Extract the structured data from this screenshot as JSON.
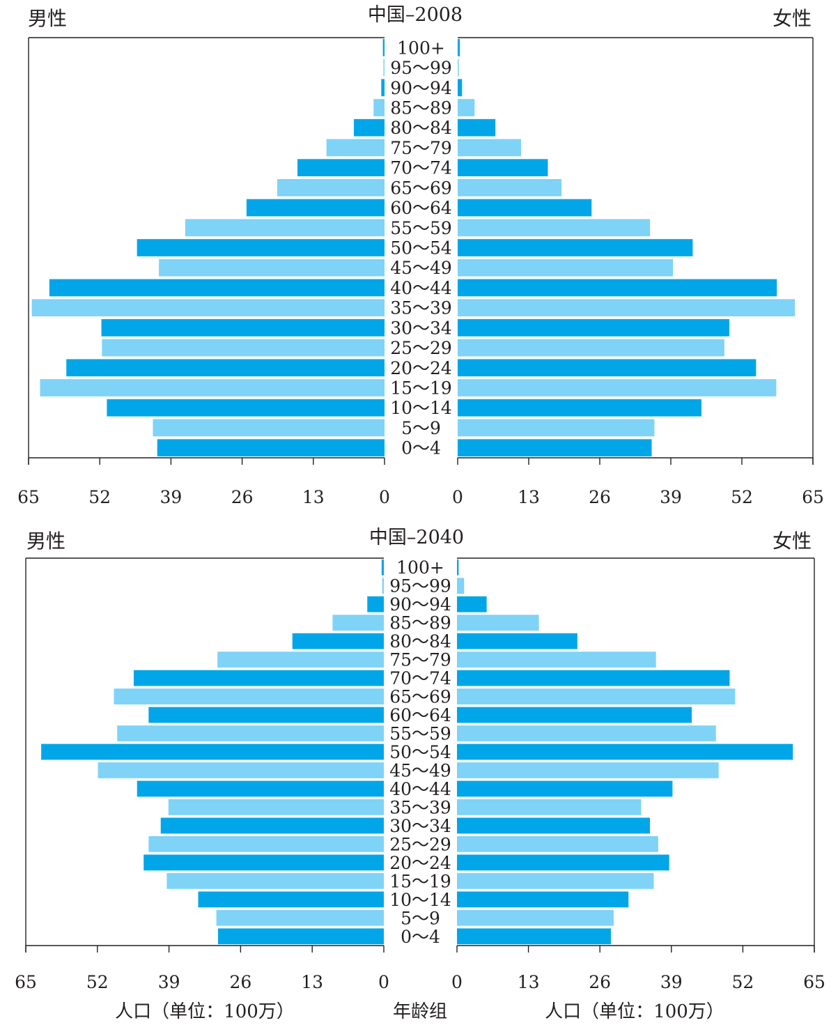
{
  "colors": {
    "dark_bar": "#00a6e8",
    "light_bar": "#7ed3f7",
    "frame": "#231f20"
  },
  "axis_ticks": [
    "0",
    "13",
    "26",
    "39",
    "52",
    "65"
  ],
  "footer": {
    "left_axis_label": "人口（单位：100万）",
    "center_label": "年龄组",
    "right_axis_label": "人口（单位：100万）"
  },
  "chart_data": [
    {
      "type": "bar",
      "title": "中国–2008",
      "left_label": "男性",
      "right_label": "女性",
      "age_groups": [
        "100+",
        "95～99",
        "90～94",
        "85～89",
        "80～84",
        "75～79",
        "70～74",
        "65～69",
        "60～64",
        "55～59",
        "50～54",
        "45～49",
        "40～44",
        "35～39",
        "30～34",
        "25～29",
        "20～24",
        "15～19",
        "10～14",
        "5～9",
        "0～4"
      ],
      "male": [
        0.3,
        0.2,
        0.6,
        2.0,
        5.6,
        10.6,
        15.9,
        19.6,
        25.2,
        36.4,
        45.2,
        41.2,
        61.2,
        64.4,
        51.7,
        51.6,
        58.1,
        62.9,
        50.7,
        42.3,
        41.5
      ],
      "female": [
        0.4,
        0.2,
        0.8,
        3.1,
        6.9,
        11.6,
        16.5,
        19.0,
        24.5,
        35.2,
        43.0,
        39.4,
        58.4,
        61.7,
        49.7,
        48.8,
        54.6,
        58.3,
        44.6,
        36.0,
        35.5
      ],
      "xlim": [
        0,
        65
      ]
    },
    {
      "type": "bar",
      "title": "中国–2040",
      "left_label": "男性",
      "right_label": "女性",
      "age_groups": [
        "100+",
        "95～99",
        "90～94",
        "85～89",
        "80～84",
        "75～79",
        "70～74",
        "65～69",
        "60～64",
        "55～59",
        "50～54",
        "45～49",
        "40～44",
        "35～39",
        "30～34",
        "25～29",
        "20～24",
        "15～19",
        "10～14",
        "5～9",
        "0～4"
      ],
      "male": [
        0.4,
        0.3,
        3.0,
        9.3,
        16.6,
        30.2,
        45.4,
        49.0,
        42.7,
        48.4,
        62.2,
        51.9,
        44.8,
        39.1,
        40.5,
        42.7,
        43.6,
        39.4,
        33.7,
        30.4,
        30.1
      ],
      "female": [
        0.3,
        1.3,
        5.4,
        14.9,
        21.9,
        36.2,
        49.6,
        50.6,
        42.7,
        47.1,
        61.1,
        47.6,
        39.2,
        33.5,
        35.1,
        36.6,
        38.6,
        35.8,
        31.2,
        28.5,
        28.0
      ],
      "xlim": [
        0,
        65
      ]
    }
  ]
}
